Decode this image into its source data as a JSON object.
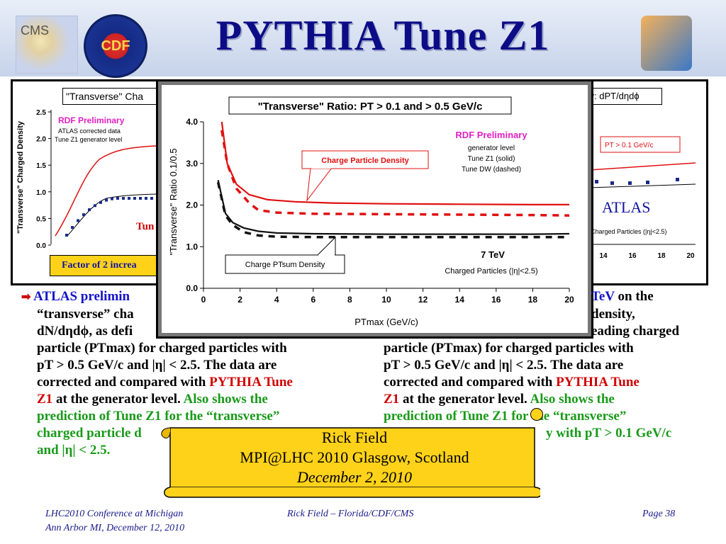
{
  "header": {
    "title": "PYTHIA Tune Z1",
    "logo_left_text": "CMS",
    "logo_cdf_text": "CDF"
  },
  "left_panel": {
    "title": "\"Transverse\" Cha",
    "prelim": "RDF Preliminary",
    "sub1": "ATLAS corrected data",
    "sub2": "Tune Z1 generator level",
    "ylabel": "\"Transverse\" Charged Density",
    "yticks": [
      "2.5",
      "2.0",
      "1.5",
      "1.0",
      "0.5",
      "0.0"
    ],
    "tune_label": "Tun",
    "factor_note": "Factor of 2 increa"
  },
  "right_panel": {
    "title": "ity: dPT/dηdϕ",
    "pt_label": "PT > 0.1 GeV/c",
    "atlas": "ATLAS",
    "charged": "Charged Particles (|η|<2.5)",
    "xticks": [
      "14",
      "16",
      "18",
      "20"
    ]
  },
  "chart_data": {
    "type": "line",
    "title": "\"Transverse\" Ratio: PT > 0.1 and > 0.5 GeV/c",
    "xlabel": "PTmax  (GeV/c)",
    "ylabel": "\"Transverse\" Ratio 0.1/0.5",
    "xlim": [
      0,
      20
    ],
    "ylim": [
      0,
      4
    ],
    "xticks": [
      "0",
      "2",
      "4",
      "6",
      "8",
      "10",
      "12",
      "14",
      "16",
      "18",
      "20"
    ],
    "yticks": [
      "0.0",
      "1.0",
      "2.0",
      "3.0",
      "4.0"
    ],
    "legend": {
      "prelim": "RDF Preliminary",
      "gen": "generator level",
      "solid": "Tune Z1 (solid)",
      "dashed": "Tune DW (dashed)"
    },
    "energy": "7 TeV",
    "charged": "Charged Particles (|η|<2.5)",
    "callout_density": "Charge Particle Density",
    "callout_ptsum": "Charge PTsum Density",
    "series": [
      {
        "color": "#e01010",
        "dashed": false,
        "x": [
          1.0,
          1.3,
          1.8,
          2.5,
          3.5,
          5,
          7,
          10,
          14,
          18,
          20
        ],
        "y": [
          4.0,
          3.0,
          2.5,
          2.25,
          2.13,
          2.08,
          2.05,
          2.03,
          2.02,
          2.01,
          2.01
        ]
      },
      {
        "color": "#e01010",
        "dashed": true,
        "x": [
          1.0,
          1.3,
          1.8,
          2.5,
          3.0,
          4,
          6,
          10,
          14,
          18,
          20
        ],
        "y": [
          3.8,
          3.0,
          2.4,
          2.05,
          1.88,
          1.82,
          1.79,
          1.78,
          1.77,
          1.76,
          1.75
        ]
      },
      {
        "color": "#111111",
        "dashed": false,
        "x": [
          0.8,
          1.2,
          1.6,
          2.2,
          3.0,
          4,
          6,
          10,
          14,
          18,
          20
        ],
        "y": [
          2.6,
          1.8,
          1.58,
          1.45,
          1.37,
          1.33,
          1.31,
          1.3,
          1.3,
          1.3,
          1.31
        ]
      },
      {
        "color": "#111111",
        "dashed": true,
        "x": [
          0.8,
          1.2,
          1.6,
          2.2,
          3.0,
          4,
          6,
          10,
          14,
          18,
          20
        ],
        "y": [
          2.55,
          1.75,
          1.52,
          1.35,
          1.27,
          1.24,
          1.23,
          1.23,
          1.23,
          1.23,
          1.23
        ]
      }
    ]
  },
  "text_left": {
    "l1a": "ATLAS prelimin",
    "l2": "“transverse” cha",
    "l3": "dN/dηdϕ, as defi",
    "l4": "particle (PTmax) for charged particles with",
    "l5": "pT > 0.5 GeV/c and |η| < 2.5.  The data are",
    "l6a": "corrected and compared with ",
    "l6b": "PYTHIA Tune",
    "l7a": "Z1",
    "l7b": " at the generator level. ",
    "l7c": "Also shows the",
    "l8": "prediction of Tune Z1 for the “transverse”",
    "l9": "charged particle d",
    "l10": "and |η| < 2.5."
  },
  "text_right": {
    "l1a": "TeV",
    "l1b": " on the",
    "l2": "density,",
    "l3": "eading charged",
    "l4": "particle (PTmax) for charged particles with",
    "l5": "pT > 0.5 GeV/c and |η| < 2.5.  The data are",
    "l6a": "corrected and compared with ",
    "l6b": "PYTHIA Tune",
    "l7a": "Z1",
    "l7b": " at the generator level. ",
    "l7c": "Also shows the",
    "l8": "prediction of Tune Z1 for the “transverse”",
    "l9": "y with pT > 0.1 GeV/c"
  },
  "scroll": {
    "line1": "Rick Field",
    "line2": "MPI@LHC 2010 Glasgow, Scotland",
    "line3": "December 2, 2010"
  },
  "footer": {
    "left1": "LHC2010 Conference at Michigan",
    "left2": "Ann Arbor MI,  December 12, 2010",
    "center": "Rick Field – Florida/CDF/CMS",
    "right": "Page 38"
  }
}
